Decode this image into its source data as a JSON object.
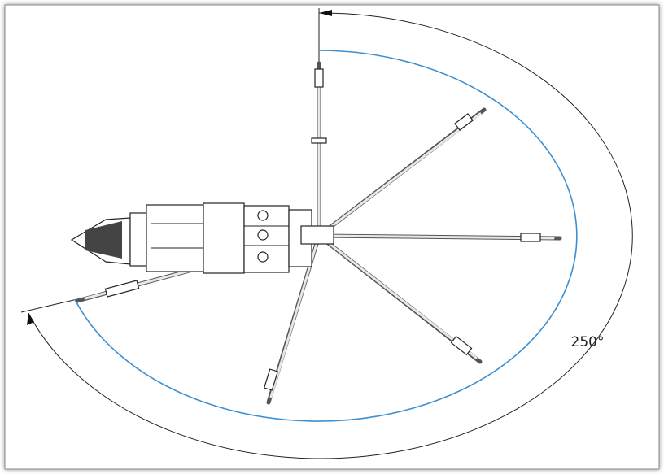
{
  "diagram": {
    "angle_label": "250°"
  }
}
